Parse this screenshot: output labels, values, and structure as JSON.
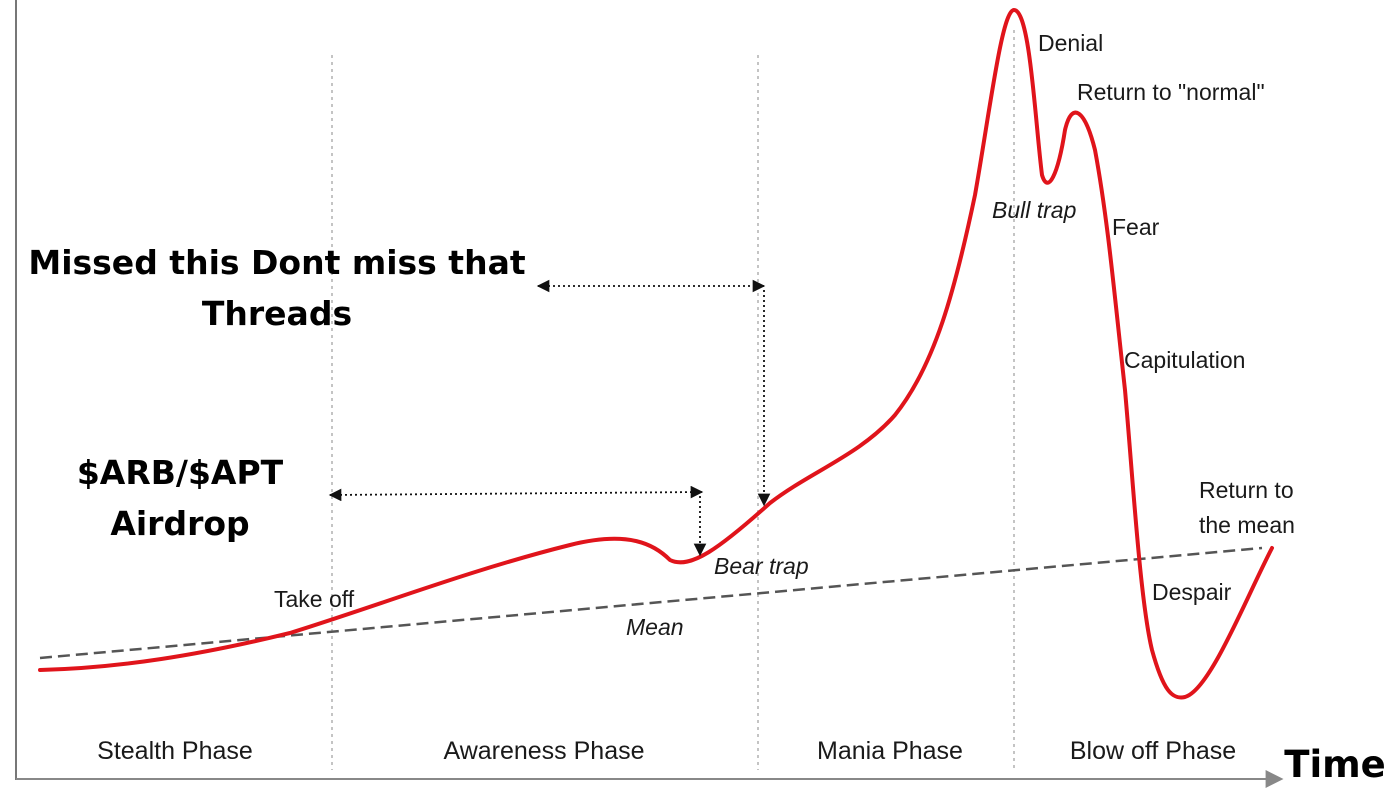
{
  "chart_data": {
    "type": "line",
    "xlabel": "Time",
    "phases": [
      "Stealth Phase",
      "Awareness Phase",
      "Mania Phase",
      "Blow off Phase"
    ],
    "series": [
      {
        "name": "",
        "x": [
          0.0,
          0.1,
          0.18,
          0.27,
          0.36,
          0.44,
          0.47,
          0.5,
          0.54,
          0.58,
          0.62,
          0.66,
          0.72,
          0.75,
          0.78,
          0.8,
          0.82,
          0.83,
          0.84,
          0.86,
          0.88,
          0.9,
          1.0
        ],
        "y": [
          0.02,
          0.06,
          0.14,
          0.24,
          0.33,
          0.37,
          0.34,
          0.31,
          0.39,
          0.47,
          0.55,
          0.64,
          0.88,
          0.99,
          0.76,
          0.88,
          0.73,
          0.55,
          0.34,
          0.12,
          -0.03,
          -0.02,
          0.16
        ]
      }
    ],
    "mean_line": {
      "x": [
        0.0,
        1.0
      ],
      "y": [
        0.05,
        0.18
      ]
    },
    "annotations": [
      {
        "text": "Take off"
      },
      {
        "text": "Bear trap"
      },
      {
        "text": "Mean"
      },
      {
        "text": "Bull trap"
      },
      {
        "text": "Denial"
      },
      {
        "text": "Return to \"normal\""
      },
      {
        "text": "Fear"
      },
      {
        "text": "Capitulation"
      },
      {
        "text": "Return to",
        "text2": "the mean"
      },
      {
        "text": "Despair"
      }
    ],
    "callouts": [
      {
        "line1": "Missed this Dont miss that",
        "line2": "Threads"
      },
      {
        "line1": "$ARB/$APT",
        "line2": "Airdrop"
      }
    ],
    "colors": {
      "curve": "#e0141b",
      "mean": "#555555",
      "axis": "#777777",
      "divider": "#bbbbbb"
    }
  }
}
